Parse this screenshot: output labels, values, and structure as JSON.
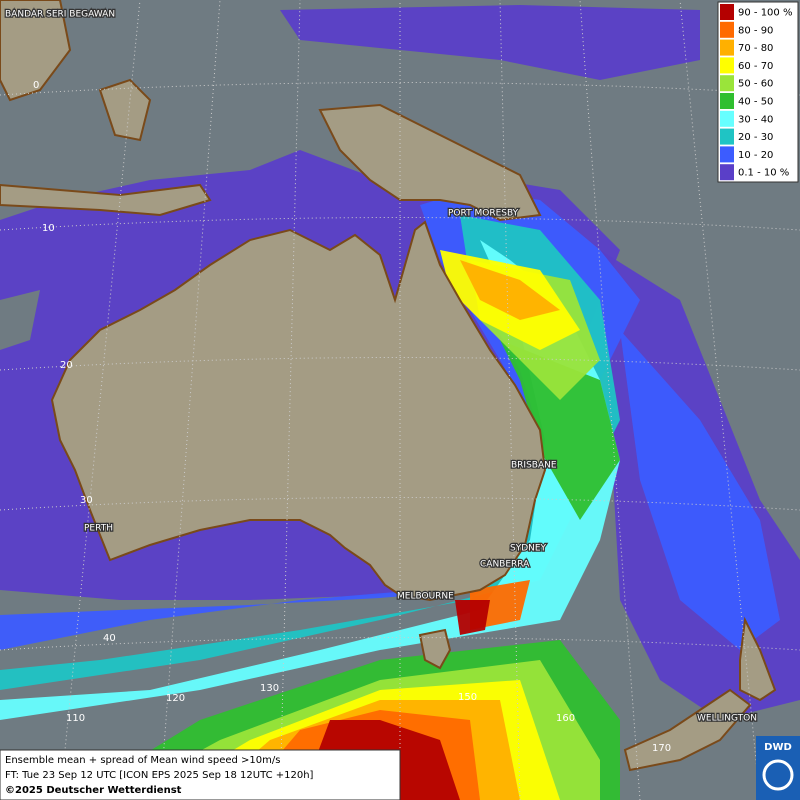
{
  "legend": [
    {
      "label": "90 - 100 %",
      "color": "#b40000"
    },
    {
      "label": "80 - 90",
      "color": "#ff6a00"
    },
    {
      "label": "70 - 80",
      "color": "#ffb000"
    },
    {
      "label": "60 - 70",
      "color": "#ffff00"
    },
    {
      "label": "50 - 60",
      "color": "#9ae43a"
    },
    {
      "label": "40 - 50",
      "color": "#2fbf2f"
    },
    {
      "label": "30 - 40",
      "color": "#66ffff"
    },
    {
      "label": "20 - 30",
      "color": "#1fc4c4"
    },
    {
      "label": "10 - 20",
      "color": "#3c5cff"
    },
    {
      "label": "0.1 - 10 %",
      "color": "#5a3fc8"
    }
  ],
  "places": [
    "BANDAR SERI BEGAWAN",
    "PORT MORESBY",
    "BRISBANE",
    "PERTH",
    "SYDNEY",
    "CANBERRA",
    "MELBOURNE",
    "WELLINGTON"
  ],
  "grid_labels": [
    "0",
    "10",
    "20",
    "30",
    "40",
    "110",
    "120",
    "130",
    "150",
    "160",
    "170"
  ],
  "footer": [
    "Ensemble mean + spread of Mean wind speed >10m/s",
    "FT: Tue 23 Sep 12 UTC [ICON EPS 2025 Sep 18 12UTC +120h]",
    "©2025 Deutscher Wetterdienst"
  ],
  "logo": "DWD"
}
